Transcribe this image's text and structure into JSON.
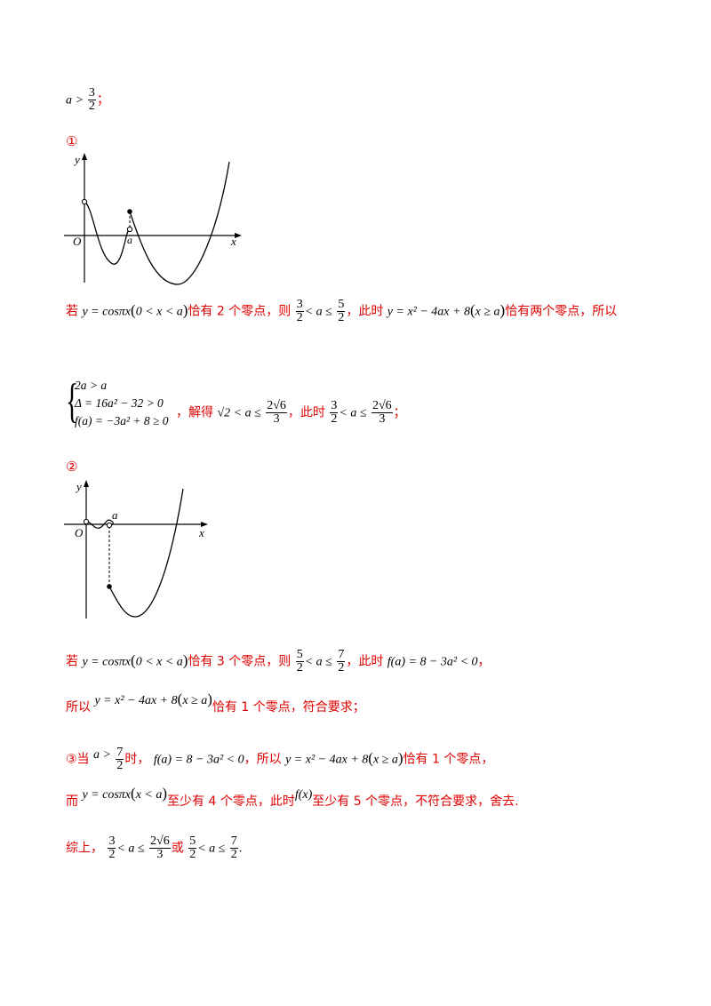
{
  "top_condition": {
    "var": "a",
    "op": ">",
    "num": "3",
    "den": "2",
    "suffix": "；"
  },
  "case1": {
    "marker": "①",
    "graph": {
      "y_label": "y",
      "x_label": "x",
      "origin_label": "O",
      "a_label": "a"
    },
    "line1": {
      "prefix": "若",
      "func": "y = cosπx",
      "domain": "0 < x < a",
      "zeros_text": "恰有 2 个零点，则",
      "frac1": {
        "num": "3",
        "den": "2"
      },
      "mid": "< a ≤",
      "frac2": {
        "num": "5",
        "den": "2"
      },
      "cond_text": "，此时",
      "func2": "y = x² − 4ax + 8",
      "domain2": "x ≥ a",
      "end_text": "恰有两个零点，所以"
    },
    "system": {
      "rows": [
        "2a > a",
        "Δ = 16a² − 32 > 0",
        "f(a) = −3a² + 8 ≥ 0"
      ],
      "solve_text": "，解得",
      "sol": "√2 < a ≤",
      "sol_frac": {
        "num": "2√6",
        "den": "3"
      },
      "then_text": "，此时",
      "then_frac1": {
        "num": "3",
        "den": "2"
      },
      "then_mid": "< a ≤",
      "then_frac2": {
        "num": "2√6",
        "den": "3"
      },
      "end": "；"
    }
  },
  "case2": {
    "marker": "②",
    "graph": {
      "y_label": "y",
      "x_label": "x",
      "origin_label": "O",
      "a_label": "a"
    },
    "line1": {
      "prefix": "若",
      "func": "y = cosπx",
      "domain": "0 < x < a",
      "zeros_text": "恰有 3 个零点，则",
      "frac1": {
        "num": "5",
        "den": "2"
      },
      "mid": "< a ≤",
      "frac2": {
        "num": "7",
        "den": "2"
      },
      "cond_text": "，此时",
      "fa": "f(a) = 8 − 3a² < 0",
      "end": "，"
    },
    "line2": {
      "prefix": "所以",
      "func": "y = x² − 4ax + 8",
      "domain": "x ≥ a",
      "end_text": "恰有 1 个零点，符合要求；"
    }
  },
  "case3": {
    "line1": {
      "prefix": "③当",
      "cond": "a >",
      "frac": {
        "num": "7",
        "den": "2"
      },
      "when": "时，",
      "fa": "f(a) = 8 − 3a² < 0",
      "so": "，所以",
      "func": "y = x² − 4ax + 8",
      "domain": "x ≥ a",
      "end_text": "恰有 1 个零点，"
    },
    "line2": {
      "prefix": "而",
      "func": "y = cosπx",
      "domain": "x < a",
      "text1": "至少有 4 个零点，此时",
      "fx": "f(x)",
      "text2": "至少有 5 个零点，不符合要求，舍去."
    }
  },
  "conclusion": {
    "prefix": "综上，",
    "frac1": {
      "num": "3",
      "den": "2"
    },
    "mid1": "< a ≤",
    "frac2": {
      "num": "2√6",
      "den": "3"
    },
    "or": "或",
    "frac3": {
      "num": "5",
      "den": "2"
    },
    "mid2": "< a ≤",
    "frac4": {
      "num": "7",
      "den": "2"
    },
    "end": "."
  }
}
